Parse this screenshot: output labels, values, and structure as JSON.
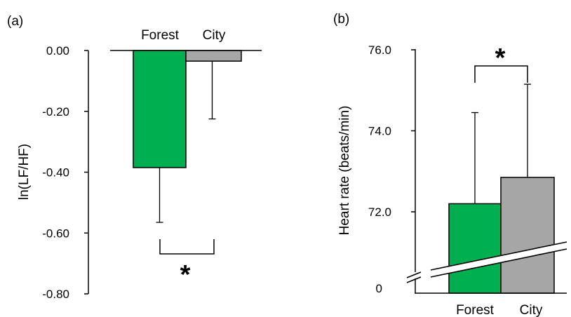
{
  "chart_data": [
    {
      "panel": "(a)",
      "type": "bar",
      "categories": [
        "Forest",
        "City"
      ],
      "values": [
        -0.385,
        -0.035
      ],
      "error_low": [
        -0.565,
        -0.225
      ],
      "ylabel": "ln(LF/HF)",
      "yticks": [
        "0.00",
        "-0.20",
        "-0.40",
        "-0.60",
        "-0.80"
      ],
      "ylim": [
        -0.8,
        0.0
      ],
      "colors": [
        "#00b050",
        "#a6a6a6"
      ],
      "significance": "*",
      "grid": false
    },
    {
      "panel": "(b)",
      "type": "bar",
      "categories": [
        "Forest",
        "City"
      ],
      "values": [
        72.2,
        72.85
      ],
      "error_high": [
        74.45,
        75.15
      ],
      "ylabel": "Heart rate (beats/min)",
      "yticks": [
        "76.0",
        "74.0",
        "72.0",
        "0"
      ],
      "ylim": [
        0,
        76.0
      ],
      "axis_break": true,
      "colors": [
        "#00b050",
        "#a6a6a6"
      ],
      "significance": "*",
      "grid": false
    }
  ]
}
